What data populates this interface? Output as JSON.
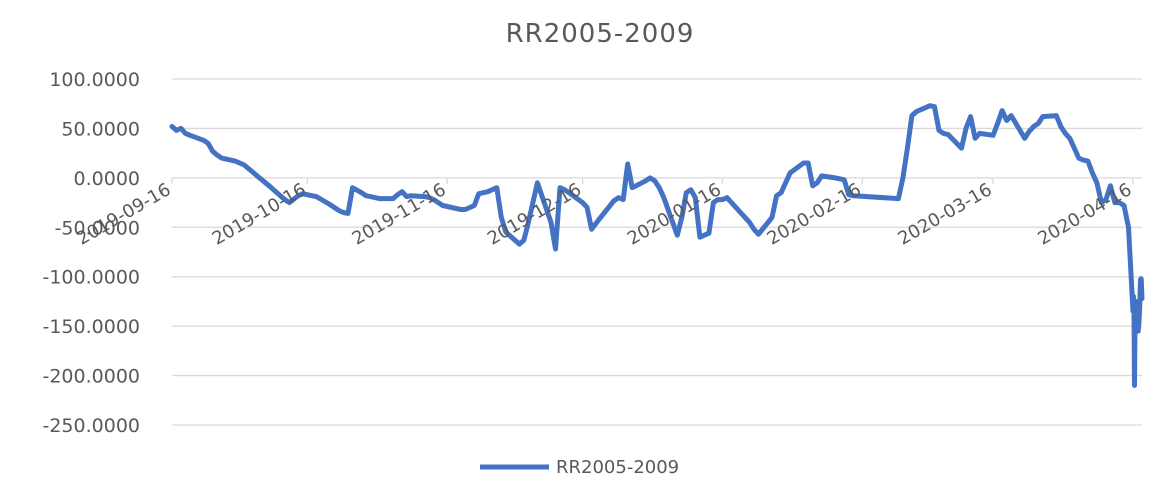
{
  "chart_data": {
    "type": "line",
    "title": "RR2005-2009",
    "xlabel": "",
    "ylabel": "",
    "ylim": [
      -250,
      100
    ],
    "grid": true,
    "legend_position": "bottom",
    "y_tick_labels": [
      "100.0000",
      "50.0000",
      "0.0000",
      "-50.0000",
      "-100.0000",
      "-150.0000",
      "-200.0000",
      "-250.0000"
    ],
    "x_tick_labels": [
      "2019-09-16",
      "2019-10-16",
      "2019-11-16",
      "2019-12-16",
      "2020-01-16",
      "2020-02-16",
      "2020-03-16",
      "2020-04-16"
    ],
    "x_range": [
      "2019-09-16",
      "2020-04-18"
    ],
    "series": [
      {
        "name": "RR2005-2009",
        "color": "#4472C4",
        "points": [
          [
            "2019-09-16",
            52
          ],
          [
            "2019-09-17",
            48
          ],
          [
            "2019-09-18",
            50
          ],
          [
            "2019-09-19",
            45
          ],
          [
            "2019-09-20",
            43
          ],
          [
            "2019-09-23",
            38
          ],
          [
            "2019-09-24",
            35
          ],
          [
            "2019-09-25",
            27
          ],
          [
            "2019-09-26",
            23
          ],
          [
            "2019-09-27",
            20
          ],
          [
            "2019-09-30",
            17
          ],
          [
            "2019-10-01",
            15
          ],
          [
            "2019-10-02",
            13
          ],
          [
            "2019-10-08",
            -10
          ],
          [
            "2019-10-09",
            -14
          ],
          [
            "2019-10-10",
            -18
          ],
          [
            "2019-10-11",
            -22
          ],
          [
            "2019-10-12",
            -25
          ],
          [
            "2019-10-14",
            -18
          ],
          [
            "2019-10-15",
            -16
          ],
          [
            "2019-10-16",
            -17
          ],
          [
            "2019-10-17",
            -18
          ],
          [
            "2019-10-18",
            -19
          ],
          [
            "2019-10-21",
            -27
          ],
          [
            "2019-10-22",
            -30
          ],
          [
            "2019-10-23",
            -33
          ],
          [
            "2019-10-24",
            -35
          ],
          [
            "2019-10-25",
            -36
          ],
          [
            "2019-10-26",
            -10
          ],
          [
            "2019-10-28",
            -15
          ],
          [
            "2019-10-29",
            -18
          ],
          [
            "2019-10-30",
            -19
          ],
          [
            "2019-10-31",
            -20
          ],
          [
            "2019-11-01",
            -21
          ],
          [
            "2019-11-04",
            -21
          ],
          [
            "2019-11-05",
            -17
          ],
          [
            "2019-11-06",
            -14
          ],
          [
            "2019-11-07",
            -19
          ],
          [
            "2019-11-08",
            -18
          ],
          [
            "2019-11-11",
            -19
          ],
          [
            "2019-11-12",
            -20
          ],
          [
            "2019-11-13",
            -22
          ],
          [
            "2019-11-14",
            -25
          ],
          [
            "2019-11-15",
            -28
          ],
          [
            "2019-11-18",
            -31
          ],
          [
            "2019-11-19",
            -32
          ],
          [
            "2019-11-20",
            -32
          ],
          [
            "2019-11-21",
            -30
          ],
          [
            "2019-11-22",
            -28
          ],
          [
            "2019-11-23",
            -16
          ],
          [
            "2019-11-25",
            -14
          ],
          [
            "2019-11-26",
            -12
          ],
          [
            "2019-11-27",
            -10
          ],
          [
            "2019-11-28",
            -40
          ],
          [
            "2019-11-29",
            -55
          ],
          [
            "2019-12-02",
            -67
          ],
          [
            "2019-12-03",
            -63
          ],
          [
            "2019-12-04",
            -45
          ],
          [
            "2019-12-05",
            -25
          ],
          [
            "2019-12-06",
            -5
          ],
          [
            "2019-12-09",
            -45
          ],
          [
            "2019-12-10",
            -72
          ],
          [
            "2019-12-11",
            -10
          ],
          [
            "2019-12-12",
            -12
          ],
          [
            "2019-12-13",
            -15
          ],
          [
            "2019-12-16",
            -25
          ],
          [
            "2019-12-17",
            -30
          ],
          [
            "2019-12-18",
            -52
          ],
          [
            "2019-12-19",
            -46
          ],
          [
            "2019-12-20",
            -40
          ],
          [
            "2019-12-23",
            -23
          ],
          [
            "2019-12-24",
            -20
          ],
          [
            "2019-12-25",
            -22
          ],
          [
            "2019-12-26",
            14
          ],
          [
            "2019-12-27",
            -10
          ],
          [
            "2019-12-30",
            -3
          ],
          [
            "2019-12-31",
            0
          ],
          [
            "2020-01-01",
            -3
          ],
          [
            "2020-01-02",
            -10
          ],
          [
            "2020-01-03",
            -20
          ],
          [
            "2020-01-06",
            -58
          ],
          [
            "2020-01-07",
            -40
          ],
          [
            "2020-01-08",
            -15
          ],
          [
            "2020-01-09",
            -12
          ],
          [
            "2020-01-10",
            -20
          ],
          [
            "2020-01-11",
            -60
          ],
          [
            "2020-01-13",
            -56
          ],
          [
            "2020-01-14",
            -25
          ],
          [
            "2020-01-15",
            -22
          ],
          [
            "2020-01-16",
            -22
          ],
          [
            "2020-01-17",
            -20
          ],
          [
            "2020-01-20",
            -35
          ],
          [
            "2020-01-21",
            -40
          ],
          [
            "2020-01-22",
            -45
          ],
          [
            "2020-01-23",
            -52
          ],
          [
            "2020-01-24",
            -57
          ],
          [
            "2020-01-27",
            -40
          ],
          [
            "2020-01-28",
            -18
          ],
          [
            "2020-01-29",
            -15
          ],
          [
            "2020-01-30",
            -5
          ],
          [
            "2020-01-31",
            5
          ],
          [
            "2020-02-03",
            15
          ],
          [
            "2020-02-04",
            15
          ],
          [
            "2020-02-05",
            -8
          ],
          [
            "2020-02-06",
            -5
          ],
          [
            "2020-02-07",
            2
          ],
          [
            "2020-02-10",
            0
          ],
          [
            "2020-02-11",
            -1
          ],
          [
            "2020-02-12",
            -2
          ],
          [
            "2020-02-13",
            -17
          ],
          [
            "2020-02-14",
            -18
          ],
          [
            "2020-02-24",
            -21
          ],
          [
            "2020-02-25",
            0
          ],
          [
            "2020-02-26",
            30
          ],
          [
            "2020-02-27",
            63
          ],
          [
            "2020-02-28",
            67
          ],
          [
            "2020-03-02",
            73
          ],
          [
            "2020-03-03",
            72
          ],
          [
            "2020-03-04",
            48
          ],
          [
            "2020-03-05",
            45
          ],
          [
            "2020-03-06",
            44
          ],
          [
            "2020-03-09",
            30
          ],
          [
            "2020-03-10",
            50
          ],
          [
            "2020-03-11",
            62
          ],
          [
            "2020-03-12",
            40
          ],
          [
            "2020-03-13",
            45
          ],
          [
            "2020-03-16",
            43
          ],
          [
            "2020-03-17",
            55
          ],
          [
            "2020-03-18",
            68
          ],
          [
            "2020-03-19",
            58
          ],
          [
            "2020-03-20",
            63
          ],
          [
            "2020-03-23",
            40
          ],
          [
            "2020-03-24",
            47
          ],
          [
            "2020-03-25",
            52
          ],
          [
            "2020-03-26",
            55
          ],
          [
            "2020-03-27",
            62
          ],
          [
            "2020-03-30",
            63
          ],
          [
            "2020-03-31",
            52
          ],
          [
            "2020-04-01",
            45
          ],
          [
            "2020-04-02",
            40
          ],
          [
            "2020-04-03",
            30
          ],
          [
            "2020-04-04",
            20
          ],
          [
            "2020-04-05",
            18
          ],
          [
            "2020-04-06",
            17
          ],
          [
            "2020-04-07",
            5
          ],
          [
            "2020-04-08",
            -5
          ],
          [
            "2020-04-09",
            -25
          ],
          [
            "2020-04-10",
            -22
          ],
          [
            "2020-04-11",
            -8
          ],
          [
            "2020-04-12",
            -25
          ],
          [
            "2020-04-13",
            -25
          ],
          [
            "2020-04-14",
            -28
          ],
          [
            "2020-04-15",
            -50
          ],
          [
            "2020-04-16",
            -135
          ],
          [
            "2020-04-16",
            -120
          ],
          [
            "2020-04-16",
            -135
          ],
          [
            "2020-04-16",
            -210
          ],
          [
            "2020-04-16",
            -150
          ],
          [
            "2020-04-16",
            -125
          ],
          [
            "2020-04-16",
            -130
          ],
          [
            "2020-04-16",
            -135
          ],
          [
            "2020-04-16",
            -140
          ],
          [
            "2020-04-17",
            -127
          ],
          [
            "2020-04-17",
            -155
          ],
          [
            "2020-04-17",
            -145
          ],
          [
            "2020-04-17",
            -130
          ],
          [
            "2020-04-17",
            -103
          ],
          [
            "2020-04-17",
            -102
          ],
          [
            "2020-04-18",
            -122
          ]
        ]
      }
    ]
  }
}
